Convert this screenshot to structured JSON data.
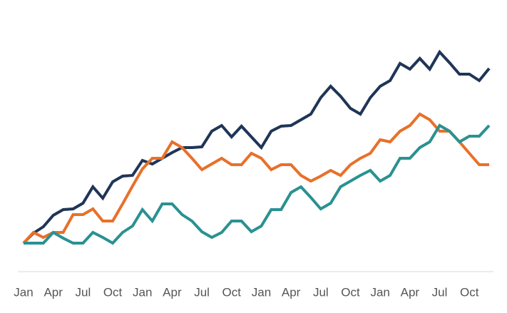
{
  "chart_data": {
    "type": "line",
    "categories": [
      "Jan",
      null,
      null,
      "Apr",
      null,
      null,
      "Jul",
      null,
      null,
      "Oct",
      null,
      null,
      "Jan",
      null,
      null,
      "Apr",
      null,
      null,
      "Jul",
      null,
      null,
      "Oct",
      null,
      null,
      "Jan",
      null,
      null,
      "Apr",
      null,
      null,
      "Jul",
      null,
      null,
      "Oct",
      null,
      null,
      "Jan",
      null,
      null,
      "Apr",
      null,
      null,
      "Jul",
      null,
      null,
      "Oct",
      null,
      null
    ],
    "ylim": [
      0,
      300
    ],
    "series": [
      {
        "color": "#1f3557",
        "values": [
          20,
          34,
          43,
          59,
          67,
          68,
          76,
          99,
          83,
          106,
          114,
          115,
          136,
          131,
          139,
          147,
          154,
          154,
          155,
          177,
          185,
          169,
          184,
          169,
          154,
          177,
          184,
          185,
          193,
          201,
          224,
          240,
          226,
          209,
          201,
          224,
          240,
          248,
          272,
          264,
          279,
          264,
          288,
          273,
          257,
          257,
          248,
          265
        ]
      },
      {
        "color": "#e8702a",
        "values": [
          20,
          35,
          28,
          35,
          35,
          60,
          60,
          68,
          51,
          51,
          75,
          100,
          124,
          139,
          139,
          162,
          154,
          139,
          123,
          131,
          139,
          130,
          130,
          146,
          139,
          123,
          130,
          130,
          115,
          107,
          114,
          122,
          115,
          130,
          139,
          146,
          165,
          162,
          177,
          185,
          201,
          193,
          177,
          177,
          162,
          146,
          130,
          130
        ]
      },
      {
        "color": "#2a9191",
        "values": [
          20,
          20,
          20,
          35,
          27,
          20,
          20,
          35,
          28,
          20,
          35,
          44,
          67,
          51,
          75,
          75,
          60,
          51,
          36,
          28,
          35,
          51,
          51,
          36,
          44,
          67,
          67,
          91,
          99,
          84,
          68,
          76,
          99,
          107,
          115,
          122,
          107,
          115,
          139,
          139,
          154,
          162,
          185,
          177,
          162,
          170,
          170,
          185
        ]
      }
    ]
  }
}
